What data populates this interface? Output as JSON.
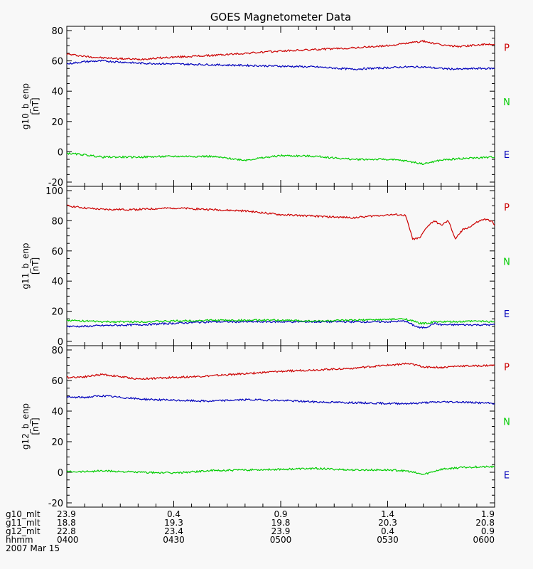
{
  "title": "GOES Magnetometer Data",
  "colors": {
    "P": "#cc0000",
    "N": "#00cc00",
    "E": "#0000bb"
  },
  "chart_data": [
    {
      "type": "line",
      "ylabel": "g10_b_enp",
      "yunit": "[nT]",
      "ylim": [
        -20,
        80
      ],
      "yticks": [
        -20,
        0,
        20,
        40,
        60,
        80
      ],
      "xlim": [
        0,
        120
      ],
      "legend": [
        "P",
        "N",
        "E"
      ],
      "series": [
        {
          "name": "P",
          "color": "#cc0000",
          "x": [
            0,
            5,
            10,
            20,
            30,
            40,
            50,
            60,
            70,
            80,
            90,
            95,
            100,
            105,
            110,
            115,
            120
          ],
          "y": [
            64.5,
            63,
            62,
            61,
            62.5,
            63.5,
            65,
            66.5,
            67.5,
            68.5,
            70,
            71.5,
            73,
            70.5,
            69.5,
            70.5,
            71
          ]
        },
        {
          "name": "E",
          "color": "#0000bb",
          "x": [
            0,
            5,
            10,
            20,
            30,
            40,
            50,
            60,
            70,
            80,
            90,
            95,
            100,
            105,
            110,
            115,
            120
          ],
          "y": [
            58,
            59.5,
            60,
            58.5,
            58,
            57.5,
            57,
            56.5,
            56,
            54.5,
            55.5,
            56,
            56,
            55,
            54.5,
            55,
            55
          ]
        },
        {
          "name": "N",
          "color": "#00cc00",
          "x": [
            0,
            5,
            10,
            20,
            30,
            40,
            50,
            60,
            70,
            80,
            90,
            95,
            100,
            105,
            110,
            115,
            120
          ],
          "y": [
            -1,
            -2,
            -3.5,
            -3.5,
            -3,
            -3,
            -5.5,
            -2.5,
            -3,
            -5,
            -5,
            -6,
            -8,
            -5.5,
            -4.5,
            -4,
            -3.5
          ]
        }
      ]
    },
    {
      "type": "line",
      "ylabel": "g11_b_enp",
      "yunit": "[nT]",
      "ylim": [
        0,
        100
      ],
      "yticks": [
        0,
        20,
        40,
        60,
        80,
        100
      ],
      "xlim": [
        0,
        120
      ],
      "legend": [
        "P",
        "N",
        "E"
      ],
      "series": [
        {
          "name": "P",
          "color": "#cc0000",
          "x": [
            0,
            5,
            10,
            20,
            30,
            40,
            50,
            60,
            70,
            80,
            85,
            90,
            93,
            95,
            97,
            99,
            101,
            103,
            105,
            107,
            109,
            111,
            113,
            115,
            117,
            119,
            120
          ],
          "y": [
            90,
            88.5,
            87.5,
            87.5,
            88.5,
            87.5,
            86.5,
            84,
            83,
            82,
            83,
            84,
            84,
            83.5,
            68,
            68.5,
            76,
            80,
            77,
            80,
            68,
            74,
            76,
            79,
            81,
            80,
            77
          ]
        },
        {
          "name": "E",
          "color": "#0000bb",
          "x": [
            0,
            5,
            10,
            20,
            30,
            40,
            50,
            60,
            70,
            80,
            90,
            95,
            97,
            99,
            101,
            103,
            105,
            110,
            115,
            120
          ],
          "y": [
            10,
            10,
            10.5,
            11,
            12,
            13,
            13,
            13,
            13,
            13,
            13,
            13.5,
            11,
            9,
            9.5,
            12,
            11,
            11,
            11,
            11
          ]
        },
        {
          "name": "N",
          "color": "#00cc00",
          "x": [
            0,
            5,
            10,
            20,
            30,
            40,
            50,
            60,
            70,
            80,
            90,
            95,
            97,
            99,
            101,
            103,
            105,
            110,
            115,
            120
          ],
          "y": [
            14,
            13.5,
            13,
            13,
            13.5,
            14,
            14,
            14,
            13.5,
            14,
            14.5,
            15,
            13.5,
            12,
            12,
            13,
            13,
            13,
            13.5,
            13
          ]
        }
      ]
    },
    {
      "type": "line",
      "ylabel": "g12_b_enp",
      "yunit": "[nT]",
      "ylim": [
        -20,
        80
      ],
      "yticks": [
        -20,
        0,
        20,
        40,
        60,
        80
      ],
      "xlim": [
        0,
        120
      ],
      "legend": [
        "P",
        "N",
        "E"
      ],
      "series": [
        {
          "name": "P",
          "color": "#cc0000",
          "x": [
            0,
            5,
            10,
            20,
            30,
            40,
            50,
            60,
            70,
            80,
            90,
            95,
            97,
            100,
            105,
            110,
            115,
            120
          ],
          "y": [
            62,
            62.5,
            64,
            61,
            62,
            63,
            64.5,
            66,
            67,
            68,
            70,
            71,
            70.5,
            69,
            68.5,
            69.5,
            69.5,
            70
          ]
        },
        {
          "name": "E",
          "color": "#0000bb",
          "x": [
            0,
            5,
            10,
            20,
            30,
            40,
            50,
            60,
            70,
            80,
            90,
            95,
            97,
            100,
            105,
            110,
            115,
            120
          ],
          "y": [
            49,
            49,
            50,
            48,
            47,
            46.5,
            47.5,
            47,
            46,
            45.5,
            45,
            45,
            45,
            45.5,
            46,
            46,
            45.5,
            45
          ]
        },
        {
          "name": "N",
          "color": "#00cc00",
          "x": [
            0,
            5,
            10,
            20,
            30,
            40,
            50,
            60,
            70,
            80,
            90,
            95,
            97,
            100,
            105,
            110,
            115,
            120
          ],
          "y": [
            0.5,
            0.5,
            1,
            0,
            -0.5,
            1,
            1.5,
            2,
            2.5,
            1.5,
            1.5,
            1,
            0,
            -1.5,
            2,
            3,
            3.5,
            3.5
          ]
        }
      ]
    }
  ],
  "x_rows": [
    {
      "label": "g10_mlt",
      "values": [
        "23.9",
        "0.4",
        "0.9",
        "1.4",
        "1.9"
      ]
    },
    {
      "label": "g11_mlt",
      "values": [
        "18.8",
        "19.3",
        "19.8",
        "20.3",
        "20.8"
      ]
    },
    {
      "label": "g12_mlt",
      "values": [
        "22.8",
        "23.4",
        "23.9",
        "0.4",
        "0.9"
      ]
    },
    {
      "label": "hhmm",
      "values": [
        "0400",
        "0430",
        "0500",
        "0530",
        "0600"
      ]
    }
  ],
  "date": "2007 Mar 15",
  "x_major_minutes": [
    0,
    30,
    60,
    90,
    120
  ]
}
